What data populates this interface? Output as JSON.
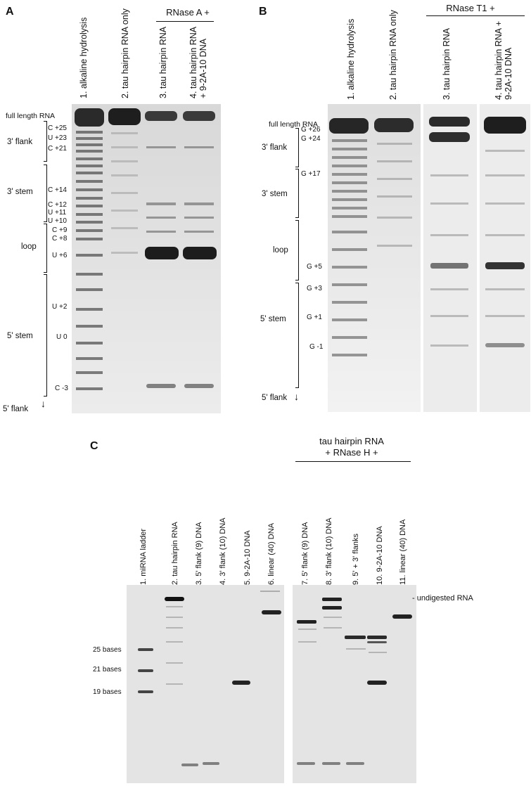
{
  "panelA": {
    "letter": "A",
    "lanes": [
      "1. alkaline hydrolysis",
      "2. tau hairpin RNA only",
      "3. tau hairpin RNA",
      "4. tau hairpin RNA"
    ],
    "lane4_line2": "+ 9-2A-10 DNA",
    "group_title": "RNase A +",
    "full_length": "full length RNA",
    "regions": [
      "3' flank",
      "3' stem",
      "loop",
      "5' stem",
      "5' flank"
    ],
    "bands": [
      "C +25",
      "U +23",
      "C +21",
      "C +14",
      "C +12",
      "U +11",
      "U +10",
      "C +9",
      "C +8",
      "U +6",
      "U +2",
      "U 0",
      "C -3"
    ]
  },
  "panelB": {
    "letter": "B",
    "lanes": [
      "1. alkaline hydrolysis",
      "2. tau hairpin RNA only",
      "3. tau hairpin RNA",
      "4. tau hairpin RNA +"
    ],
    "lane4_line2": "9-2A-10 DNA",
    "group_title": "RNase T1 +",
    "full_length": "full length RNA",
    "regions": [
      "3' flank",
      "3' stem",
      "loop",
      "5' stem",
      "5' flank"
    ],
    "bands": [
      "G +26",
      "G +24",
      "G +17",
      "G +5",
      "G +3",
      "G +1",
      "G -1"
    ]
  },
  "panelC": {
    "letter": "C",
    "group_title_1": "tau hairpin RNA",
    "group_title_2": "+ RNase H +",
    "lanes": [
      "1. miRNA ladder",
      "2. tau hairpin RNA",
      "3. 5' flank (9) DNA",
      "4. 3' flank (10) DNA",
      "5. 9-2A-10 DNA",
      "6. linear (40) DNA",
      "7. 5' flank (9) DNA",
      "8. 3' flank (10) DNA",
      "9. 5' + 3' flanks",
      "10. 9-2A-10 DNA",
      "11. linear (40) DNA"
    ],
    "markers": [
      "25 bases",
      "21 bases",
      "19 bases"
    ],
    "undigested": "- undigested RNA"
  }
}
